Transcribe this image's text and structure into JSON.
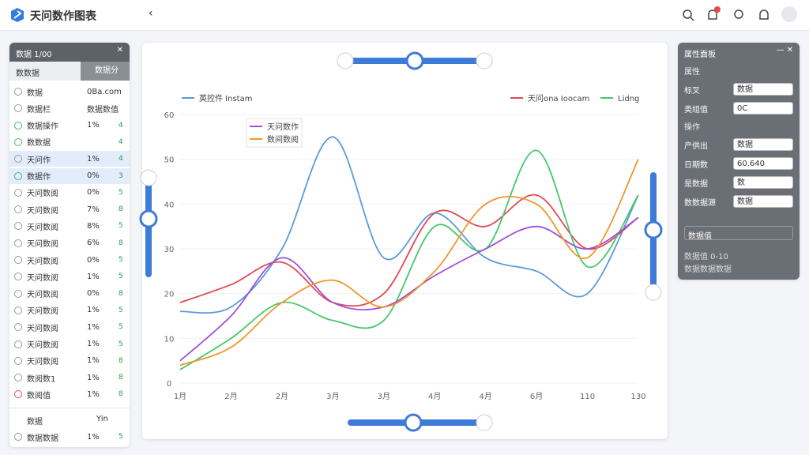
{
  "header": {
    "title": "天问数作图表"
  },
  "left_panel": {
    "title": "数据 1/00",
    "tabs": [
      "数数据",
      "数据分"
    ],
    "rows": [
      [
        "数据",
        "0Ba.com",
        ""
      ],
      [
        "数据栏",
        "数据数值",
        ""
      ],
      [
        "数据操作",
        "1%",
        "4"
      ],
      [
        "数数据",
        "",
        "4"
      ],
      [
        "天问作",
        "1%",
        "4"
      ],
      [
        "数据作",
        "0%",
        "3"
      ],
      [
        "天问数阅",
        "0%",
        "5"
      ],
      [
        "天问数阅",
        "7%",
        "8"
      ],
      [
        "天问数阅",
        "8%",
        "5"
      ],
      [
        "天问数阅",
        "6%",
        "8"
      ],
      [
        "天问数阅",
        "0%",
        "5"
      ],
      [
        "天问数阅",
        "1%",
        "5"
      ],
      [
        "天问数阅",
        "0%",
        "8"
      ],
      [
        "天问数阅",
        "1%",
        "5"
      ],
      [
        "天问数阅",
        "1%",
        "5"
      ],
      [
        "天问数阅",
        "1%",
        "5"
      ],
      [
        "天问数阅",
        "1%",
        "8"
      ],
      [
        "数阅数1",
        "1%",
        "8"
      ],
      [
        "数阅值",
        "1%",
        "8"
      ]
    ],
    "footer": {
      "title": "数据",
      "value": "Yin",
      "rows": [
        [
          "数据数据",
          "1%",
          "5"
        ]
      ]
    }
  },
  "right_panel": {
    "title": "属性面板",
    "sections": [
      {
        "title": "属性",
        "fields": [
          [
            "标叉",
            "数据"
          ],
          [
            "类组值",
            "0C"
          ]
        ]
      },
      {
        "title": "操作",
        "fields": [
          [
            "产供出",
            "数据"
          ],
          [
            "日期数",
            "60.640"
          ],
          [
            "是数据",
            "数"
          ],
          [
            "数数据源",
            "数据"
          ]
        ]
      }
    ],
    "select": "数据值",
    "notes": [
      "数据值 0-10",
      "数据数据数据"
    ]
  },
  "chart": {
    "type": "line",
    "categories": [
      "1月",
      "2月",
      "2月",
      "3月",
      "3月",
      "4月",
      "4月",
      "6月",
      "110",
      "130"
    ],
    "ylim": [
      0,
      60
    ],
    "yticks": [
      0,
      10,
      20,
      30,
      40,
      50,
      60
    ],
    "series": [
      {
        "name": "英控件 Instam",
        "color": "#5b9bd9",
        "legend": "top-left",
        "values": [
          16,
          17,
          30,
          55,
          28,
          38,
          28,
          25,
          20,
          42
        ]
      },
      {
        "name": "天问ona Ioocam",
        "color": "#e04a55",
        "legend": "top-right",
        "values": [
          18,
          22,
          27,
          18,
          20,
          38,
          35,
          42,
          30,
          37
        ]
      },
      {
        "name": "Lidng",
        "color": "#46c86a",
        "legend": "top-right",
        "values": [
          3,
          10,
          18,
          14,
          14,
          35,
          30,
          52,
          26,
          42
        ]
      },
      {
        "name": "天问数作",
        "color": "#a04fd8",
        "legend": "inner",
        "values": [
          5,
          15,
          28,
          18,
          17,
          24,
          30,
          35,
          30,
          37
        ]
      },
      {
        "name": "数间数阅",
        "color": "#f0962e",
        "legend": "inner",
        "values": [
          4,
          8,
          18,
          23,
          17,
          25,
          40,
          40,
          28,
          50
        ]
      }
    ]
  }
}
